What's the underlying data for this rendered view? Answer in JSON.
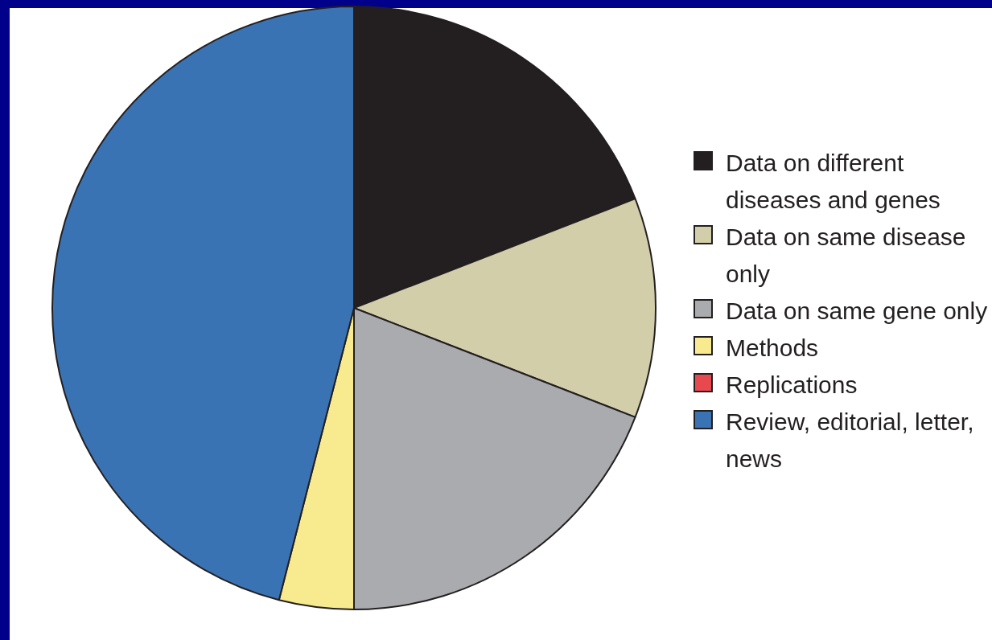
{
  "chart_data": {
    "type": "pie",
    "categories": [
      "Data on different diseases and genes",
      "Data on same disease only",
      "Data on same gene only",
      "Methods",
      "Replications",
      "Review, editorial, letter, news"
    ],
    "values": [
      19.1,
      11.8,
      19.1,
      4.0,
      0,
      46.0
    ],
    "colors": [
      "#231f20",
      "#d3ceaa",
      "#a9abaf",
      "#f8eb8f",
      "#e8494f",
      "#3a73b4"
    ],
    "legend": "right"
  }
}
